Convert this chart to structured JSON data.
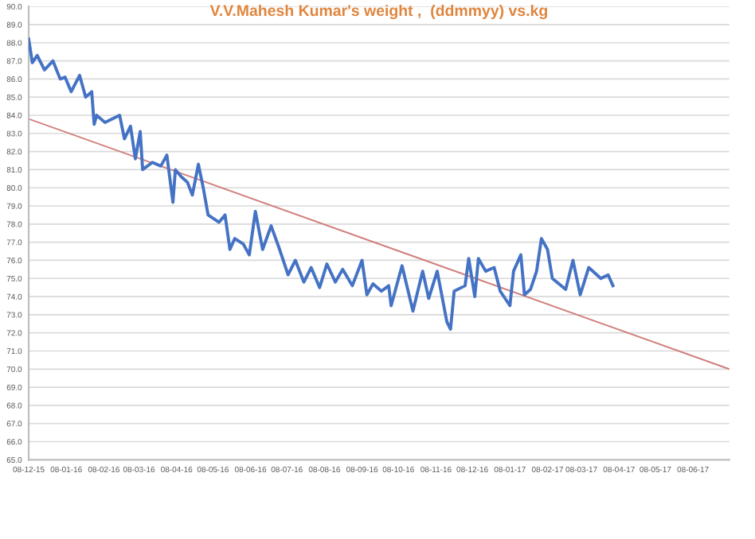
{
  "chart_data": {
    "type": "line",
    "title": "V.V.Mahesh Kumar's weight ,  (ddmmyy) vs.kg",
    "xlim": [
      "2015-12-08",
      "2017-07-08"
    ],
    "xticks": [
      {
        "value": "2015-12-08",
        "label": "08-12-15"
      },
      {
        "value": "2016-01-08",
        "label": "08-01-16"
      },
      {
        "value": "2016-02-08",
        "label": "08-02-16"
      },
      {
        "value": "2016-03-08",
        "label": "08-03-16"
      },
      {
        "value": "2016-04-08",
        "label": "08-04-16"
      },
      {
        "value": "2016-05-08",
        "label": "08-05-16"
      },
      {
        "value": "2016-06-08",
        "label": "08-06-16"
      },
      {
        "value": "2016-07-08",
        "label": "08-07-16"
      },
      {
        "value": "2016-08-08",
        "label": "08-08-16"
      },
      {
        "value": "2016-09-08",
        "label": "08-09-16"
      },
      {
        "value": "2016-10-08",
        "label": "08-10-16"
      },
      {
        "value": "2016-11-08",
        "label": "08-11-16"
      },
      {
        "value": "2016-12-08",
        "label": "08-12-16"
      },
      {
        "value": "2017-01-08",
        "label": "08-01-17"
      },
      {
        "value": "2017-02-08",
        "label": "08-02-17"
      },
      {
        "value": "2017-03-08",
        "label": "08-03-17"
      },
      {
        "value": "2017-04-08",
        "label": "08-04-17"
      },
      {
        "value": "2017-05-08",
        "label": "08-05-17"
      },
      {
        "value": "2017-06-08",
        "label": "08-06-17"
      }
    ],
    "ylim": [
      65,
      90
    ],
    "yticks": [
      {
        "value": 65,
        "label": "65.0"
      },
      {
        "value": 66,
        "label": "66.0"
      },
      {
        "value": 67,
        "label": "67.0"
      },
      {
        "value": 68,
        "label": "68.0"
      },
      {
        "value": 69,
        "label": "69.0"
      },
      {
        "value": 70,
        "label": "70.0"
      },
      {
        "value": 71,
        "label": "71.0"
      },
      {
        "value": 72,
        "label": "72.0"
      },
      {
        "value": 73,
        "label": "73.0"
      },
      {
        "value": 74,
        "label": "74.0"
      },
      {
        "value": 75,
        "label": "75.0"
      },
      {
        "value": 76,
        "label": "76.0"
      },
      {
        "value": 77,
        "label": "77.0"
      },
      {
        "value": 78,
        "label": "78.0"
      },
      {
        "value": 79,
        "label": "79.0"
      },
      {
        "value": 80,
        "label": "80.0"
      },
      {
        "value": 81,
        "label": "81.0"
      },
      {
        "value": 82,
        "label": "82.0"
      },
      {
        "value": 83,
        "label": "83.0"
      },
      {
        "value": 84,
        "label": "84.0"
      },
      {
        "value": 85,
        "label": "85.0"
      },
      {
        "value": 86,
        "label": "86.0"
      },
      {
        "value": 87,
        "label": "87.0"
      },
      {
        "value": 88,
        "label": "88.0"
      },
      {
        "value": 89,
        "label": "89.0"
      },
      {
        "value": 90,
        "label": "90.0"
      }
    ],
    "grid": "y",
    "legend": false,
    "marker": "none",
    "line_style": "solid",
    "series": [
      {
        "color": "#4472c4",
        "x": [
          "2015-12-08",
          "2015-12-11",
          "2015-12-15",
          "2015-12-21",
          "2015-12-28",
          "2016-01-03",
          "2016-01-07",
          "2016-01-12",
          "2016-01-19",
          "2016-01-24",
          "2016-01-29",
          "2016-01-31",
          "2016-02-02",
          "2016-02-09",
          "2016-02-15",
          "2016-02-21",
          "2016-02-25",
          "2016-03-01",
          "2016-03-05",
          "2016-03-09",
          "2016-03-11",
          "2016-03-19",
          "2016-03-26",
          "2016-03-31",
          "2016-04-05",
          "2016-04-07",
          "2016-04-12",
          "2016-04-17",
          "2016-04-21",
          "2016-04-26",
          "2016-04-30",
          "2016-05-04",
          "2016-05-13",
          "2016-05-18",
          "2016-05-22",
          "2016-05-26",
          "2016-06-02",
          "2016-06-07",
          "2016-06-12",
          "2016-06-18",
          "2016-06-25",
          "2016-07-02",
          "2016-07-09",
          "2016-07-15",
          "2016-07-22",
          "2016-07-28",
          "2016-08-04",
          "2016-08-10",
          "2016-08-17",
          "2016-08-23",
          "2016-08-31",
          "2016-09-08",
          "2016-09-12",
          "2016-09-17",
          "2016-09-24",
          "2016-09-30",
          "2016-10-02",
          "2016-10-11",
          "2016-10-20",
          "2016-10-28",
          "2016-11-02",
          "2016-11-09",
          "2016-11-17",
          "2016-11-20",
          "2016-11-23",
          "2016-12-02",
          "2016-12-05",
          "2016-12-10",
          "2016-12-13",
          "2016-12-19",
          "2016-12-26",
          "2016-12-31",
          "2017-01-08",
          "2017-01-11",
          "2017-01-17",
          "2017-01-20",
          "2017-01-25",
          "2017-01-30",
          "2017-02-03",
          "2017-02-08",
          "2017-02-12",
          "2017-02-23",
          "2017-03-01",
          "2017-03-07",
          "2017-03-14",
          "2017-03-24",
          "2017-03-30",
          "2017-04-03"
        ],
        "values": [
          88.2,
          86.9,
          87.3,
          86.5,
          87.0,
          86.0,
          86.1,
          85.3,
          86.2,
          85.0,
          85.3,
          83.5,
          84.0,
          83.6,
          83.8,
          84.0,
          82.7,
          83.4,
          81.6,
          83.1,
          81.0,
          81.4,
          81.2,
          81.8,
          79.2,
          81.0,
          80.6,
          80.3,
          79.6,
          81.3,
          80.0,
          78.5,
          78.1,
          78.5,
          76.6,
          77.2,
          76.9,
          76.3,
          78.7,
          76.6,
          77.9,
          76.6,
          75.2,
          76.0,
          74.8,
          75.6,
          74.5,
          75.8,
          74.8,
          75.5,
          74.6,
          76.0,
          74.1,
          74.7,
          74.3,
          74.6,
          73.5,
          75.7,
          73.2,
          75.4,
          73.9,
          75.4,
          72.6,
          72.2,
          74.3,
          74.6,
          76.1,
          74.0,
          76.1,
          75.4,
          75.6,
          74.3,
          73.5,
          75.4,
          76.3,
          74.1,
          74.4,
          75.4,
          77.2,
          76.6,
          75.0,
          74.4,
          76.0,
          74.1,
          75.6,
          75.0,
          75.2,
          74.6
        ]
      },
      {
        "type": "line",
        "color": "#d07f7c",
        "x": [
          "2015-12-08",
          "2017-07-08"
        ],
        "values": [
          83.8,
          70.0
        ]
      }
    ]
  }
}
